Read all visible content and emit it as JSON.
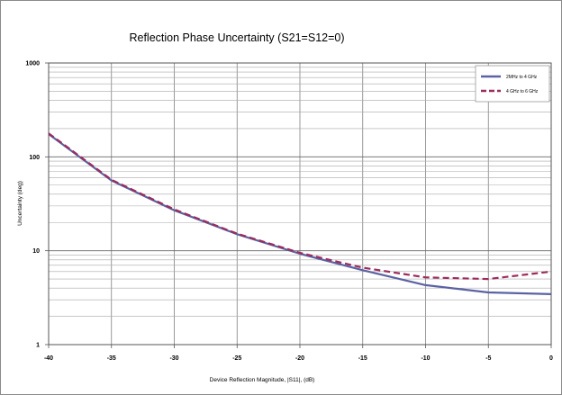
{
  "chart_data": {
    "type": "line",
    "title": "Reflection Phase Uncertainty  (S21=S12=0)",
    "xlabel": "Device Reflection Magnitude, |S11|, (dB)",
    "ylabel": "Uncertainty  (deg)",
    "xlim": [
      -40,
      0
    ],
    "ylim": [
      1,
      1000
    ],
    "y_scale": "log",
    "grid": true,
    "legend_position": "top-right",
    "x_ticks": [
      "-40",
      "-35",
      "-30",
      "-25",
      "-20",
      "-15",
      "-10",
      "-5",
      "0"
    ],
    "y_ticks": [
      "1",
      "10",
      "100",
      "1000"
    ],
    "x": [
      -40,
      -35,
      -30,
      -25,
      -20,
      -15,
      -10,
      -5,
      0
    ],
    "series": [
      {
        "name": "2MHz to 4 GHz",
        "color": "#5b62a3",
        "style": "solid",
        "values": [
          175,
          56,
          27,
          15,
          9.3,
          6.2,
          4.3,
          3.6,
          3.45
        ]
      },
      {
        "name": "4 GHz to 6 GHz",
        "color": "#9c2c5c",
        "style": "dashed",
        "values": [
          178,
          57,
          27.5,
          15.2,
          9.5,
          6.6,
          5.2,
          5.0,
          6.0
        ]
      }
    ]
  }
}
